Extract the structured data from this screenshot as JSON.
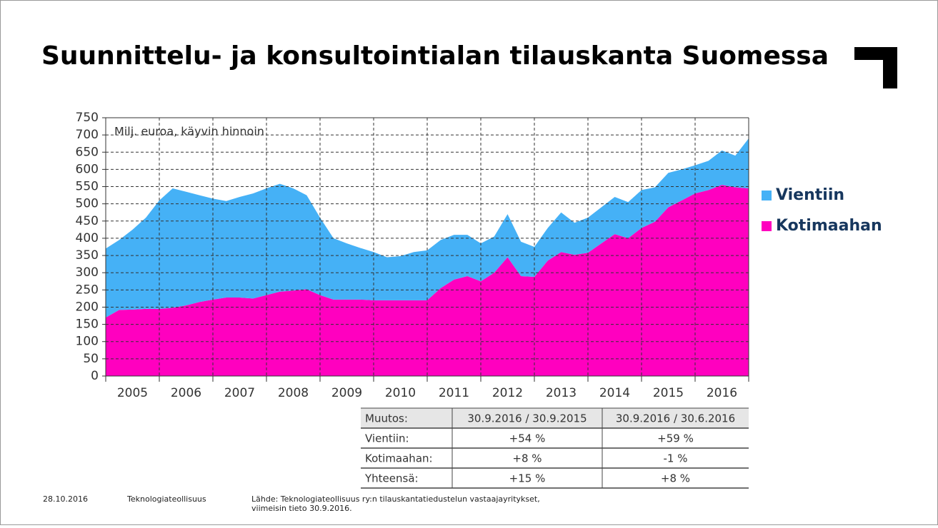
{
  "chart_data": {
    "type": "stacked-area",
    "title": "Suunnittelu- ja konsultointialan tilauskanta Suomessa",
    "annotation": "Milj. euroa, käyvin hinnoin",
    "x_labels": [
      "2005",
      "2006",
      "2007",
      "2008",
      "2009",
      "2010",
      "2011",
      "2012",
      "2013",
      "2014",
      "2015",
      "2016"
    ],
    "ylim": [
      0,
      750
    ],
    "yticks": [
      0,
      50,
      100,
      150,
      200,
      250,
      300,
      350,
      400,
      450,
      500,
      550,
      600,
      650,
      700,
      750
    ],
    "grid": true,
    "series": [
      {
        "name": "Kotimaahan",
        "color": "#ff00bf",
        "values": [
          170,
          192,
          193,
          195,
          195,
          198,
          205,
          215,
          222,
          228,
          228,
          225,
          235,
          245,
          248,
          252,
          235,
          222,
          222,
          222,
          220,
          220,
          220,
          220,
          220,
          255,
          280,
          290,
          275,
          300,
          345,
          290,
          288,
          335,
          360,
          352,
          358,
          385,
          412,
          400,
          430,
          448,
          490,
          510,
          530,
          540,
          555,
          548,
          545
        ]
      },
      {
        "name": "Vientiin",
        "color": "#45b1f6",
        "values": [
          200,
          203,
          232,
          265,
          315,
          347,
          330,
          310,
          293,
          280,
          292,
          305,
          310,
          313,
          297,
          273,
          225,
          178,
          163,
          150,
          140,
          125,
          128,
          140,
          145,
          140,
          130,
          120,
          110,
          105,
          125,
          100,
          87,
          95,
          115,
          93,
          102,
          105,
          108,
          105,
          110,
          100,
          100,
          90,
          82,
          85,
          100,
          92,
          145
        ]
      }
    ],
    "legend": "right"
  },
  "table": {
    "header": [
      "Muutos:",
      "30.9.2016 / 30.9.2015",
      "30.9.2016 / 30.6.2016"
    ],
    "rows": [
      [
        "Vientiin:",
        "+54 %",
        "+59 %"
      ],
      [
        "Kotimaahan:",
        "+8 %",
        "-1 %"
      ],
      [
        "Yhteensä:",
        "+15 %",
        "+8 %"
      ]
    ]
  },
  "footer": {
    "date": "28.10.2016",
    "org": "Teknologiateollisuus",
    "source": [
      "Lähde: Teknologiateollisuus ry:n tilauskantatiedustelun vastaajayritykset,",
      "viimeisin tieto 30.9.2016."
    ]
  }
}
